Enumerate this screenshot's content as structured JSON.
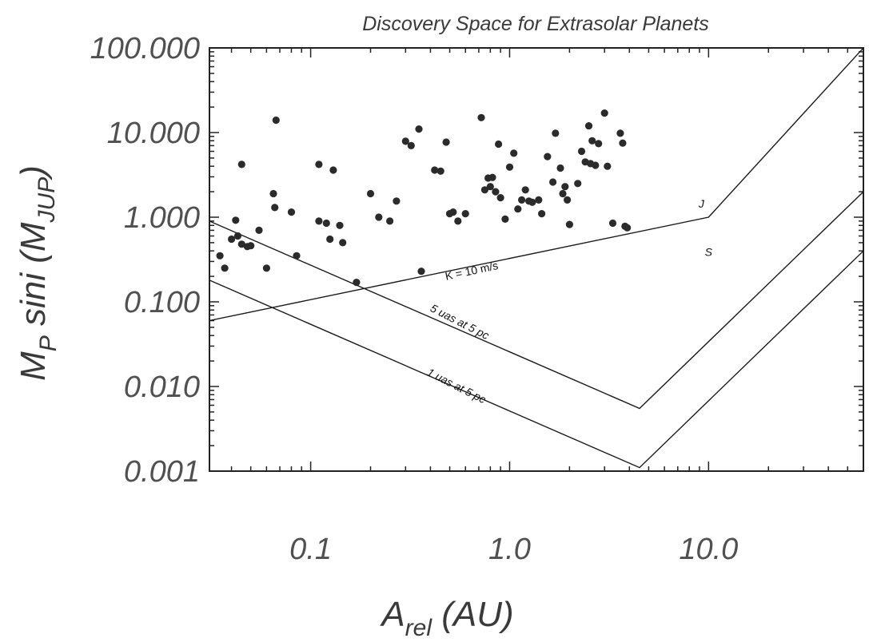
{
  "chart_data": {
    "type": "scatter",
    "title": "Discovery Space for Extrasolar Planets",
    "xlabel": "A",
    "xlabel_sub": "rel",
    "xlabel_unit": " (AU)",
    "ylabel": "M",
    "ylabel_sub": "P",
    "ylabel_mid": " sini (M",
    "ylabel_sub2": "JUP",
    "ylabel_end": ")",
    "xscale": "log",
    "yscale": "log",
    "xlim": [
      0.031,
      60
    ],
    "ylim": [
      0.001,
      100
    ],
    "xticks": [
      {
        "value": 0.1,
        "label": "0.1"
      },
      {
        "value": 1.0,
        "label": "1.0"
      },
      {
        "value": 10.0,
        "label": "10.0"
      }
    ],
    "yticks": [
      {
        "value": 100,
        "label": "100.000"
      },
      {
        "value": 10,
        "label": "10.000"
      },
      {
        "value": 1,
        "label": "1.000"
      },
      {
        "value": 0.1,
        "label": "0.100"
      },
      {
        "value": 0.01,
        "label": "0.010"
      },
      {
        "value": 0.001,
        "label": "0.001"
      }
    ],
    "grid": false,
    "points": [
      [
        0.035,
        0.35
      ],
      [
        0.037,
        0.25
      ],
      [
        0.04,
        0.55
      ],
      [
        0.042,
        0.92
      ],
      [
        0.043,
        0.6
      ],
      [
        0.045,
        0.48
      ],
      [
        0.045,
        4.2
      ],
      [
        0.048,
        0.45
      ],
      [
        0.05,
        0.46
      ],
      [
        0.055,
        0.7
      ],
      [
        0.06,
        0.25
      ],
      [
        0.065,
        1.9
      ],
      [
        0.066,
        1.3
      ],
      [
        0.067,
        14.0
      ],
      [
        0.08,
        1.15
      ],
      [
        0.085,
        0.35
      ],
      [
        0.11,
        4.2
      ],
      [
        0.11,
        0.9
      ],
      [
        0.12,
        0.85
      ],
      [
        0.125,
        0.55
      ],
      [
        0.13,
        3.6
      ],
      [
        0.14,
        0.8
      ],
      [
        0.145,
        0.5
      ],
      [
        0.17,
        0.17
      ],
      [
        0.2,
        1.9
      ],
      [
        0.22,
        1.0
      ],
      [
        0.25,
        0.9
      ],
      [
        0.27,
        1.55
      ],
      [
        0.3,
        7.9
      ],
      [
        0.32,
        7.0
      ],
      [
        0.35,
        11.0
      ],
      [
        0.36,
        0.23
      ],
      [
        0.42,
        3.6
      ],
      [
        0.45,
        3.5
      ],
      [
        0.48,
        7.7
      ],
      [
        0.5,
        1.1
      ],
      [
        0.52,
        1.15
      ],
      [
        0.55,
        0.9
      ],
      [
        0.6,
        1.1
      ],
      [
        0.72,
        15.0
      ],
      [
        0.75,
        2.1
      ],
      [
        0.78,
        2.9
      ],
      [
        0.8,
        2.3
      ],
      [
        0.82,
        2.95
      ],
      [
        0.85,
        2.0
      ],
      [
        0.88,
        7.3
      ],
      [
        0.9,
        1.7
      ],
      [
        0.95,
        0.95
      ],
      [
        1.0,
        3.9
      ],
      [
        1.05,
        5.7
      ],
      [
        1.1,
        1.25
      ],
      [
        1.15,
        1.6
      ],
      [
        1.2,
        2.1
      ],
      [
        1.25,
        1.55
      ],
      [
        1.3,
        1.5
      ],
      [
        1.4,
        1.6
      ],
      [
        1.45,
        1.1
      ],
      [
        1.55,
        5.2
      ],
      [
        1.65,
        2.6
      ],
      [
        1.7,
        9.8
      ],
      [
        1.8,
        3.8
      ],
      [
        1.85,
        1.9
      ],
      [
        1.9,
        2.3
      ],
      [
        1.95,
        1.6
      ],
      [
        2.0,
        0.82
      ],
      [
        2.2,
        2.5
      ],
      [
        2.3,
        6.0
      ],
      [
        2.4,
        4.5
      ],
      [
        2.5,
        12.0
      ],
      [
        2.55,
        4.3
      ],
      [
        2.6,
        8.0
      ],
      [
        2.7,
        4.1
      ],
      [
        2.8,
        7.4
      ],
      [
        3.0,
        17.0
      ],
      [
        3.1,
        4.0
      ],
      [
        3.3,
        0.85
      ],
      [
        3.6,
        9.8
      ],
      [
        3.7,
        7.5
      ],
      [
        3.8,
        0.78
      ],
      [
        3.9,
        0.75
      ]
    ],
    "curves": [
      {
        "name": "K = 10 m/s",
        "points": [
          [
            0.031,
            0.06
          ],
          [
            10.0,
            1.0
          ],
          [
            60,
            100
          ]
        ]
      },
      {
        "name": "5 uas at 5 pc",
        "points": [
          [
            0.031,
            0.9
          ],
          [
            4.5,
            0.0055
          ],
          [
            60,
            2.0
          ]
        ]
      },
      {
        "name": "1 uas at 5 pc",
        "points": [
          [
            0.031,
            0.18
          ],
          [
            4.5,
            0.0011
          ],
          [
            60,
            0.4
          ]
        ]
      }
    ],
    "annotations": [
      {
        "text": "J",
        "x": 9.2,
        "y": 1.3,
        "angle": 0
      },
      {
        "text": "S",
        "x": 10.0,
        "y": 0.35,
        "angle": 0
      },
      {
        "text": "K = 10 m/s",
        "x": 0.65,
        "y": 0.21,
        "angle": -12
      },
      {
        "text": "5 uas at 5 pc",
        "x": 0.55,
        "y": 0.053,
        "angle": 27
      },
      {
        "text": "1 uas at 5 pc",
        "x": 0.53,
        "y": 0.0093,
        "angle": 27
      }
    ]
  }
}
